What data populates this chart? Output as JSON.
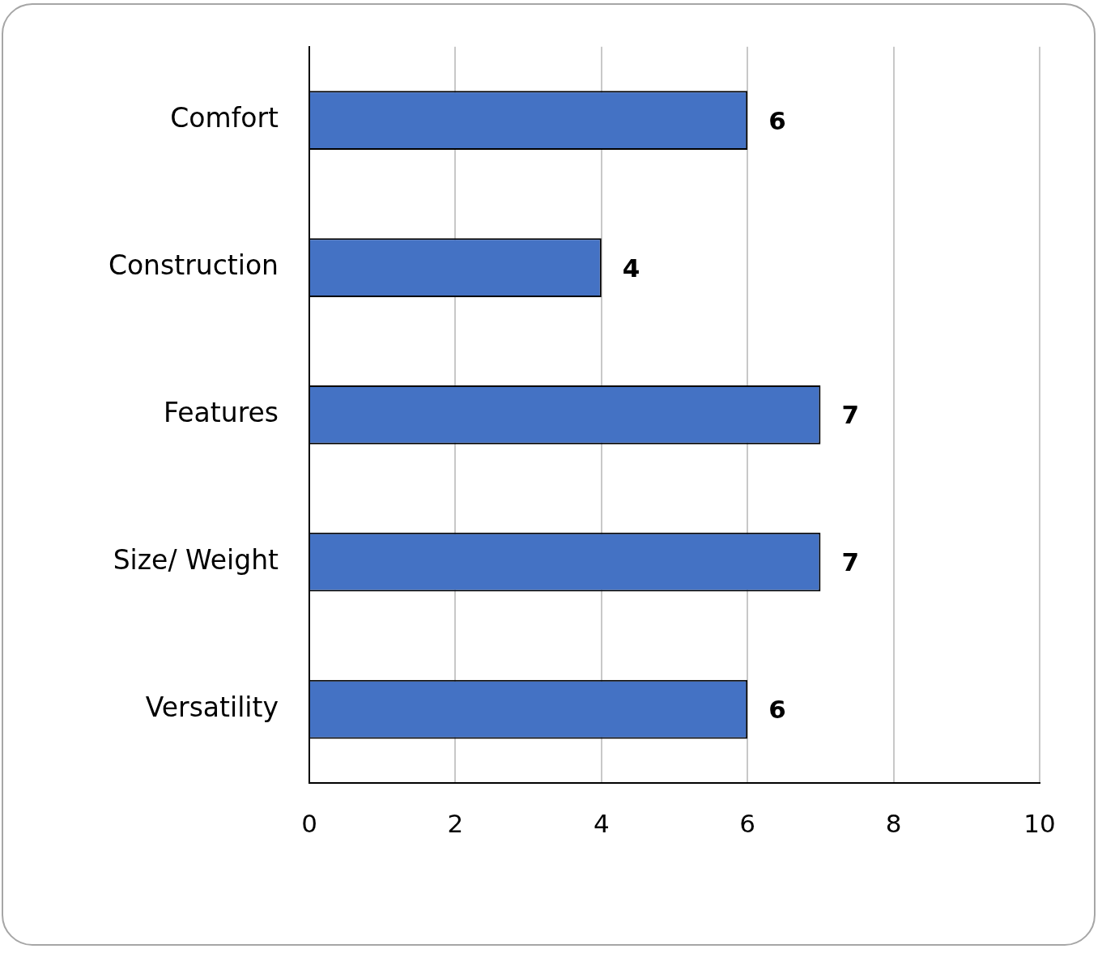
{
  "chart_data": {
    "type": "bar",
    "orientation": "horizontal",
    "categories": [
      "Comfort",
      "Construction",
      "Features",
      "Size/ Weight",
      "Versatility"
    ],
    "values": [
      6,
      4,
      7,
      7,
      6
    ],
    "color": "#4472c4",
    "xlim": [
      0,
      10
    ],
    "xticks": [
      0,
      2,
      4,
      6,
      8,
      10
    ],
    "grid": "x",
    "data_labels": true,
    "legend": false
  }
}
